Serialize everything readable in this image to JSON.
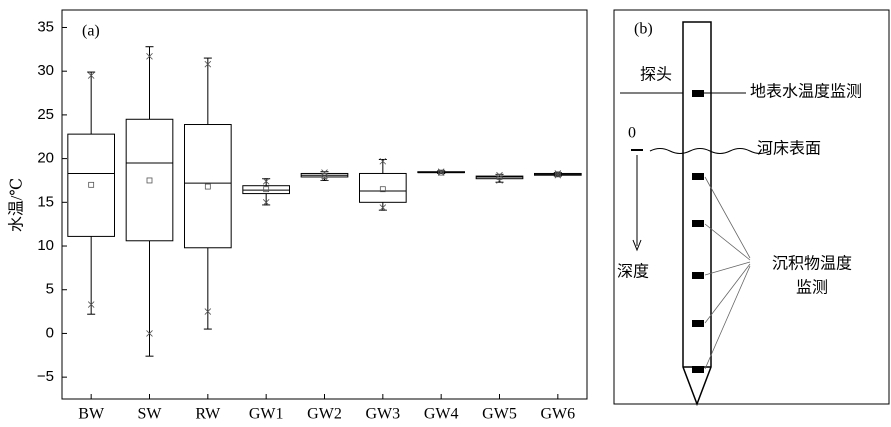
{
  "chart_data": {
    "type": "box",
    "ylabel": "水温/℃",
    "annotation": "(a)",
    "categories": [
      "BW",
      "SW",
      "RW",
      "GW1",
      "GW2",
      "GW3",
      "GW4",
      "GW5",
      "GW6"
    ],
    "whisker_low": [
      2.2,
      -2.6,
      0.5,
      14.7,
      17.5,
      14.1,
      18.3,
      17.3,
      18.0
    ],
    "q1": [
      11.1,
      10.6,
      9.8,
      16.0,
      17.9,
      15.0,
      18.4,
      17.7,
      18.1
    ],
    "median": [
      18.3,
      19.5,
      17.2,
      16.4,
      18.1,
      16.3,
      18.4,
      17.9,
      18.2
    ],
    "q3": [
      22.8,
      24.5,
      23.9,
      16.9,
      18.3,
      18.3,
      18.5,
      18.0,
      18.3
    ],
    "whisker_high": [
      29.9,
      32.8,
      31.5,
      17.7,
      18.5,
      19.9,
      18.6,
      18.2,
      18.4
    ],
    "mean": [
      17.0,
      17.5,
      16.8,
      16.5,
      18.0,
      16.5,
      18.4,
      17.9,
      18.2
    ],
    "outliers": [
      [
        29.5,
        3.3
      ],
      [
        31.7,
        0
      ],
      [
        30.8,
        2.5
      ],
      [
        17.4,
        15.0
      ],
      [
        18.4,
        17.8
      ],
      [
        19.7,
        14.4
      ],
      [
        18.5,
        18.4
      ],
      [
        18.1,
        17.5
      ],
      [
        18.3,
        18.1
      ]
    ],
    "color": "#000000",
    "ylim": [
      -7.5,
      37
    ],
    "yticks": [
      {
        "value": -5,
        "label": "−5"
      },
      0,
      5,
      10,
      15,
      20,
      25,
      30,
      35
    ]
  },
  "diagram": {
    "label": "(b)",
    "probe": "探头",
    "surface_monitor": "地表水温度监测",
    "zero": "0",
    "riverbed": "河床表面",
    "depth": "深度",
    "sediment_monitor": [
      "沉积物温度",
      "监测"
    ]
  }
}
